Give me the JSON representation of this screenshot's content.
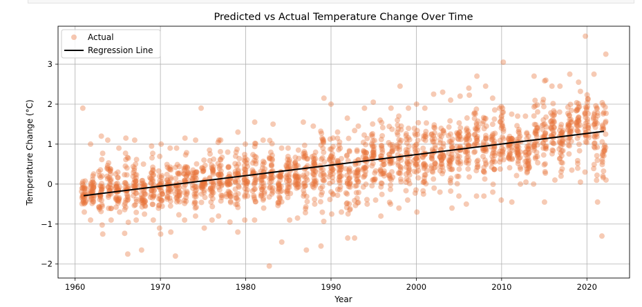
{
  "chart_data": {
    "type": "scatter",
    "title": "Predicted vs Actual Temperature Change Over Time",
    "xlabel": "Year",
    "ylabel": "Temperature Change (°C)",
    "xlim": [
      1958,
      2025
    ],
    "ylim": [
      -2.35,
      3.95
    ],
    "xticks": [
      1960,
      1970,
      1980,
      1990,
      2000,
      2010,
      2020
    ],
    "yticks": [
      -2,
      -1,
      0,
      1,
      2,
      3
    ],
    "grid": true,
    "legend_position": "top-left",
    "series": [
      {
        "name": "Actual",
        "kind": "scatter",
        "color": "#e8743b",
        "points_summary": [
          {
            "year": 1961,
            "min": -0.7,
            "max": 1.9,
            "mean": -0.25
          },
          {
            "year": 1962,
            "min": -0.9,
            "max": 1.0,
            "mean": -0.2
          },
          {
            "year": 1963,
            "min": -1.25,
            "max": 1.2,
            "mean": -0.1
          },
          {
            "year": 1964,
            "min": -0.9,
            "max": 1.1,
            "mean": 0.0
          },
          {
            "year": 1965,
            "min": -0.7,
            "max": 0.9,
            "mean": -0.15
          },
          {
            "year": 1966,
            "min": -1.75,
            "max": 1.15,
            "mean": -0.1
          },
          {
            "year": 1967,
            "min": -0.9,
            "max": 1.1,
            "mean": 0.0
          },
          {
            "year": 1968,
            "min": -1.65,
            "max": 0.5,
            "mean": -0.2
          },
          {
            "year": 1969,
            "min": -0.9,
            "max": 0.95,
            "mean": 0.0
          },
          {
            "year": 1970,
            "min": -1.25,
            "max": 1.0,
            "mean": -0.1
          },
          {
            "year": 1971,
            "min": -1.2,
            "max": 0.9,
            "mean": 0.05
          },
          {
            "year": 1972,
            "min": -1.8,
            "max": 0.9,
            "mean": -0.1
          },
          {
            "year": 1973,
            "min": -0.9,
            "max": 1.15,
            "mean": 0.1
          },
          {
            "year": 1974,
            "min": -0.8,
            "max": 1.1,
            "mean": 0.0
          },
          {
            "year": 1975,
            "min": -1.1,
            "max": 1.9,
            "mean": -0.05
          },
          {
            "year": 1976,
            "min": -0.9,
            "max": 0.85,
            "mean": 0.0
          },
          {
            "year": 1977,
            "min": -0.8,
            "max": 1.1,
            "mean": 0.15
          },
          {
            "year": 1978,
            "min": -0.95,
            "max": 0.8,
            "mean": 0.0
          },
          {
            "year": 1979,
            "min": -1.2,
            "max": 1.3,
            "mean": 0.15
          },
          {
            "year": 1980,
            "min": -0.9,
            "max": 1.0,
            "mean": 0.2
          },
          {
            "year": 1981,
            "min": -0.9,
            "max": 1.55,
            "mean": 0.25
          },
          {
            "year": 1982,
            "min": -0.6,
            "max": 1.1,
            "mean": 0.05
          },
          {
            "year": 1983,
            "min": -2.05,
            "max": 1.5,
            "mean": 0.25
          },
          {
            "year": 1984,
            "min": -1.45,
            "max": 0.9,
            "mean": 0.05
          },
          {
            "year": 1985,
            "min": -0.9,
            "max": 0.9,
            "mean": 0.15
          },
          {
            "year": 1986,
            "min": -0.85,
            "max": 0.85,
            "mean": 0.2
          },
          {
            "year": 1987,
            "min": -1.65,
            "max": 1.55,
            "mean": 0.3
          },
          {
            "year": 1988,
            "min": -0.5,
            "max": 1.45,
            "mean": 0.35
          },
          {
            "year": 1989,
            "min": -1.55,
            "max": 2.15,
            "mean": 0.4
          },
          {
            "year": 1990,
            "min": -0.75,
            "max": 2.0,
            "mean": 0.5
          },
          {
            "year": 1991,
            "min": -0.7,
            "max": 1.3,
            "mean": 0.35
          },
          {
            "year": 1992,
            "min": -1.35,
            "max": 1.65,
            "mean": 0.2
          },
          {
            "year": 1993,
            "min": -1.35,
            "max": 1.45,
            "mean": 0.3
          },
          {
            "year": 1994,
            "min": -0.5,
            "max": 1.9,
            "mean": 0.55
          },
          {
            "year": 1995,
            "min": -0.4,
            "max": 2.05,
            "mean": 0.7
          },
          {
            "year": 1996,
            "min": -0.8,
            "max": 1.6,
            "mean": 0.45
          },
          {
            "year": 1997,
            "min": -0.5,
            "max": 1.9,
            "mean": 0.6
          },
          {
            "year": 1998,
            "min": -0.6,
            "max": 2.45,
            "mean": 0.85
          },
          {
            "year": 1999,
            "min": -0.4,
            "max": 1.9,
            "mean": 0.65
          },
          {
            "year": 2000,
            "min": -0.7,
            "max": 2.0,
            "mean": 0.6
          },
          {
            "year": 2001,
            "min": -0.25,
            "max": 1.9,
            "mean": 0.8
          },
          {
            "year": 2002,
            "min": -0.1,
            "max": 2.25,
            "mean": 0.9
          },
          {
            "year": 2003,
            "min": -0.2,
            "max": 2.3,
            "mean": 0.85
          },
          {
            "year": 2004,
            "min": -0.6,
            "max": 2.1,
            "mean": 0.75
          },
          {
            "year": 2005,
            "min": -0.3,
            "max": 2.2,
            "mean": 0.95
          },
          {
            "year": 2006,
            "min": -0.5,
            "max": 2.4,
            "mean": 0.9
          },
          {
            "year": 2007,
            "min": -0.3,
            "max": 2.7,
            "mean": 1.05
          },
          {
            "year": 2008,
            "min": -0.3,
            "max": 2.45,
            "mean": 0.85
          },
          {
            "year": 2009,
            "min": -0.2,
            "max": 2.15,
            "mean": 1.0
          },
          {
            "year": 2010,
            "min": -0.4,
            "max": 3.05,
            "mean": 1.2
          },
          {
            "year": 2011,
            "min": -0.45,
            "max": 1.75,
            "mean": 0.85
          },
          {
            "year": 2012,
            "min": 0.0,
            "max": 1.7,
            "mean": 0.9
          },
          {
            "year": 2013,
            "min": 0.05,
            "max": 1.7,
            "mean": 0.85
          },
          {
            "year": 2014,
            "min": 0.0,
            "max": 2.7,
            "mean": 1.25
          },
          {
            "year": 2015,
            "min": -0.45,
            "max": 2.6,
            "mean": 1.2
          },
          {
            "year": 2016,
            "min": 0.1,
            "max": 2.45,
            "mean": 1.35
          },
          {
            "year": 2017,
            "min": 0.2,
            "max": 2.45,
            "mean": 1.1
          },
          {
            "year": 2018,
            "min": 0.35,
            "max": 2.75,
            "mean": 1.3
          },
          {
            "year": 2019,
            "min": 0.05,
            "max": 2.55,
            "mean": 1.4
          },
          {
            "year": 2020,
            "min": 0.3,
            "max": 3.7,
            "mean": 1.55
          },
          {
            "year": 2021,
            "min": -0.45,
            "max": 2.75,
            "mean": 1.2
          },
          {
            "year": 2022,
            "min": -1.3,
            "max": 3.25,
            "mean": 1.3
          }
        ]
      },
      {
        "name": "Regression Line",
        "kind": "line",
        "color": "#000000",
        "x": [
          1961,
          2022
        ],
        "y": [
          -0.29,
          1.32
        ]
      }
    ]
  }
}
